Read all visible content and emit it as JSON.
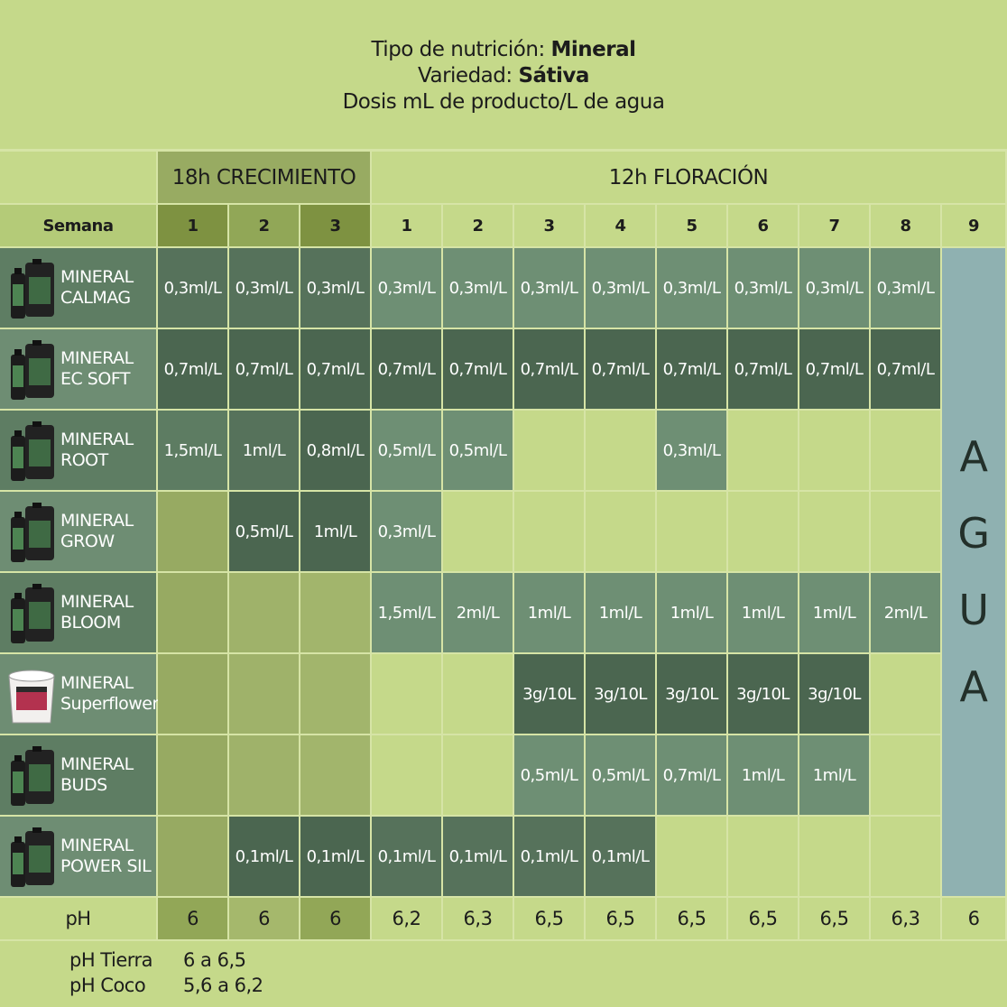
{
  "header": {
    "line1_label": "Tipo de nutrición:",
    "line1_value": "Mineral",
    "line2_label": "Variedad:",
    "line2_value": "Sátiva",
    "line3": "Dosis mL de producto/L de agua"
  },
  "table": {
    "phases": [
      "18h CRECIMIENTO",
      "12h FLORACIÓN"
    ],
    "week_label": "Semana",
    "weeks": [
      "1",
      "2",
      "3",
      "1",
      "2",
      "3",
      "4",
      "5",
      "6",
      "7",
      "8",
      "9"
    ],
    "water": [
      "A",
      "G",
      "U",
      "A"
    ],
    "rows": [
      {
        "product": [
          "MINERAL",
          "CALMAG"
        ],
        "doses": [
          "0,3ml/L",
          "0,3ml/L",
          "0,3ml/L",
          "0,3ml/L",
          "0,3ml/L",
          "0,3ml/L",
          "0,3ml/L",
          "0,3ml/L",
          "0,3ml/L",
          "0,3ml/L",
          "0,3ml/L"
        ]
      },
      {
        "product": [
          "MINERAL",
          "EC SOFT"
        ],
        "doses": [
          "0,7ml/L",
          "0,7ml/L",
          "0,7ml/L",
          "0,7ml/L",
          "0,7ml/L",
          "0,7ml/L",
          "0,7ml/L",
          "0,7ml/L",
          "0,7ml/L",
          "0,7ml/L",
          "0,7ml/L"
        ]
      },
      {
        "product": [
          "MINERAL",
          "ROOT"
        ],
        "doses": [
          "1,5ml/L",
          "1ml/L",
          "0,8ml/L",
          "0,5ml/L",
          "0,5ml/L",
          null,
          null,
          "0,3ml/L",
          null,
          null,
          null
        ]
      },
      {
        "product": [
          "MINERAL",
          "GROW"
        ],
        "doses": [
          null,
          "0,5ml/L",
          "1ml/L",
          "0,3ml/L",
          null,
          null,
          null,
          null,
          null,
          null,
          null
        ]
      },
      {
        "product": [
          "MINERAL",
          "BLOOM"
        ],
        "doses": [
          null,
          null,
          null,
          "1,5ml/L",
          "2ml/L",
          "1ml/L",
          "1ml/L",
          "1ml/L",
          "1ml/L",
          "1ml/L",
          "2ml/L"
        ]
      },
      {
        "product": [
          "MINERAL",
          "Superflower"
        ],
        "doses": [
          null,
          null,
          null,
          null,
          null,
          "3g/10L",
          "3g/10L",
          "3g/10L",
          "3g/10L",
          "3g/10L",
          null
        ]
      },
      {
        "product": [
          "MINERAL",
          "BUDS"
        ],
        "doses": [
          null,
          null,
          null,
          null,
          null,
          "0,5ml/L",
          "0,5ml/L",
          "0,7ml/L",
          "1ml/L",
          "1ml/L",
          null
        ]
      },
      {
        "product": [
          "MINERAL",
          "POWER SIL"
        ],
        "doses": [
          null,
          "0,1ml/L",
          "0,1ml/L",
          "0,1ml/L",
          "0,1ml/L",
          "0,1ml/L",
          "0,1ml/L",
          null,
          null,
          null,
          null
        ]
      }
    ],
    "ph": {
      "label": "pH",
      "values": [
        "6",
        "6",
        "6",
        "6,2",
        "6,3",
        "6,5",
        "6,5",
        "6,5",
        "6,5",
        "6,5",
        "6,3",
        "6"
      ]
    }
  },
  "footer": [
    [
      "pH Tierra",
      "6 a 6,5"
    ],
    [
      "pH Coco",
      "5,6 a 6,2"
    ]
  ]
}
